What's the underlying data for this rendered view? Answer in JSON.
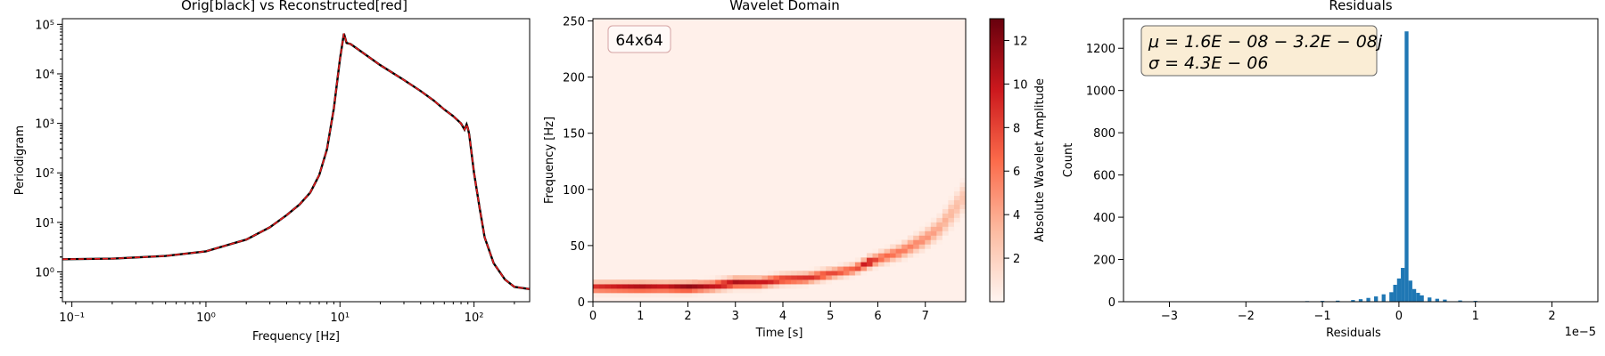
{
  "chart_data": [
    {
      "type": "line",
      "title": "Orig[black] vs Reconstructed[red]",
      "xlabel": "Frequency [Hz]",
      "ylabel": "Periodigram",
      "x_scale": "log",
      "y_scale": "log",
      "xlim": [
        0.085,
        260
      ],
      "ylim": [
        0.25,
        130000
      ],
      "x_ticks": [
        {
          "v": 0.1,
          "label": "10⁻¹"
        },
        {
          "v": 1,
          "label": "10⁰"
        },
        {
          "v": 10,
          "label": "10¹"
        },
        {
          "v": 100,
          "label": "10²"
        }
      ],
      "y_ticks": [
        {
          "v": 1,
          "label": "10⁰"
        },
        {
          "v": 10,
          "label": "10¹"
        },
        {
          "v": 100,
          "label": "10²"
        },
        {
          "v": 1000,
          "label": "10³"
        },
        {
          "v": 10000,
          "label": "10⁴"
        },
        {
          "v": 100000,
          "label": "10⁵"
        }
      ],
      "series": [
        {
          "color": "#000000",
          "style": "solid",
          "points": [
            [
              0.085,
              1.8
            ],
            [
              0.2,
              1.85
            ],
            [
              0.5,
              2.1
            ],
            [
              1,
              2.6
            ],
            [
              2,
              4.5
            ],
            [
              3,
              8
            ],
            [
              4,
              14
            ],
            [
              5,
              23
            ],
            [
              6,
              40
            ],
            [
              7,
              90
            ],
            [
              8,
              300
            ],
            [
              9,
              2000
            ],
            [
              10,
              20000
            ],
            [
              10.7,
              65000
            ],
            [
              11.2,
              42000
            ],
            [
              12,
              40000
            ],
            [
              15,
              26000
            ],
            [
              20,
              15000
            ],
            [
              30,
              7500
            ],
            [
              40,
              4500
            ],
            [
              50,
              2900
            ],
            [
              60,
              1900
            ],
            [
              70,
              1400
            ],
            [
              80,
              1000
            ],
            [
              85,
              750
            ],
            [
              88,
              950
            ],
            [
              90,
              800
            ],
            [
              92,
              600
            ],
            [
              95,
              300
            ],
            [
              100,
              100
            ],
            [
              110,
              20
            ],
            [
              120,
              5
            ],
            [
              140,
              1.5
            ],
            [
              170,
              0.7
            ],
            [
              200,
              0.5
            ],
            [
              260,
              0.45
            ]
          ]
        },
        {
          "color": "#e41a1c",
          "style": "dashed",
          "points": [
            [
              0.085,
              1.8
            ],
            [
              0.2,
              1.85
            ],
            [
              0.5,
              2.1
            ],
            [
              1,
              2.6
            ],
            [
              2,
              4.5
            ],
            [
              3,
              8
            ],
            [
              4,
              14
            ],
            [
              5,
              23
            ],
            [
              6,
              40
            ],
            [
              7,
              90
            ],
            [
              8,
              300
            ],
            [
              9,
              2000
            ],
            [
              10,
              20000
            ],
            [
              10.7,
              65000
            ],
            [
              11.2,
              42000
            ],
            [
              12,
              40000
            ],
            [
              15,
              26000
            ],
            [
              20,
              15000
            ],
            [
              30,
              7500
            ],
            [
              40,
              4500
            ],
            [
              50,
              2900
            ],
            [
              60,
              1900
            ],
            [
              70,
              1400
            ],
            [
              80,
              1000
            ],
            [
              85,
              750
            ],
            [
              88,
              950
            ],
            [
              90,
              800
            ],
            [
              92,
              600
            ],
            [
              95,
              300
            ],
            [
              100,
              100
            ],
            [
              110,
              20
            ],
            [
              120,
              5
            ],
            [
              140,
              1.5
            ],
            [
              170,
              0.7
            ],
            [
              200,
              0.5
            ],
            [
              260,
              0.45
            ]
          ]
        }
      ]
    },
    {
      "type": "heatmap",
      "title": "Wavelet Domain",
      "xlabel": "Time [s]",
      "ylabel": "Frequency [Hz]",
      "xlim": [
        0,
        7.85
      ],
      "ylim": [
        0,
        252
      ],
      "x_ticks": [
        0,
        1,
        2,
        3,
        4,
        5,
        6,
        7
      ],
      "y_ticks": [
        0,
        50,
        100,
        150,
        200,
        250
      ],
      "annotation": "64x64",
      "grid_size": [
        64,
        64
      ],
      "colorbar": {
        "label": "Absolute Wavelet Amplitude",
        "range": [
          0,
          13
        ],
        "ticks": [
          2,
          4,
          6,
          8,
          10,
          12
        ],
        "colormap": "Reds"
      },
      "ridge": [
        [
          0,
          13,
          9
        ],
        [
          0.5,
          13,
          10
        ],
        [
          1,
          13,
          11
        ],
        [
          1.5,
          13,
          10
        ],
        [
          2,
          13,
          12
        ],
        [
          2.5,
          14,
          10
        ],
        [
          3,
          17,
          11
        ],
        [
          3.5,
          17,
          10
        ],
        [
          4,
          20,
          9
        ],
        [
          4.5,
          21,
          9
        ],
        [
          5,
          25,
          8
        ],
        [
          5.5,
          29,
          7
        ],
        [
          5.8,
          35,
          11
        ],
        [
          6,
          38,
          7
        ],
        [
          6.5,
          45,
          6
        ],
        [
          7,
          56,
          5
        ],
        [
          7.3,
          66,
          4
        ],
        [
          7.5,
          76,
          3.5
        ],
        [
          7.7,
          87,
          3
        ],
        [
          7.85,
          96,
          2.5
        ]
      ]
    },
    {
      "type": "bar",
      "title": "Residuals",
      "xlabel": "Residuals",
      "ylabel": "Count",
      "x_offset_label": "1e−5",
      "xlim": [
        -3.6,
        2.6
      ],
      "ylim": [
        0,
        1340
      ],
      "x_ticks": [
        {
          "v": -3,
          "label": "−3"
        },
        {
          "v": -2,
          "label": "−2"
        },
        {
          "v": -1,
          "label": "−1"
        },
        {
          "v": 0,
          "label": "0"
        },
        {
          "v": 1,
          "label": "1"
        },
        {
          "v": 2,
          "label": "2"
        }
      ],
      "y_ticks": [
        0,
        200,
        400,
        600,
        800,
        1000,
        1200
      ],
      "bar_color": "#1f77b4",
      "stats": [
        "μ = 1.6E − 08 − 3.2E − 08j",
        "σ = 4.3E − 06"
      ],
      "bins": [
        [
          -1.2,
          3
        ],
        [
          -1.0,
          4
        ],
        [
          -0.8,
          5
        ],
        [
          -0.6,
          8
        ],
        [
          -0.5,
          12
        ],
        [
          -0.4,
          18
        ],
        [
          -0.3,
          25
        ],
        [
          -0.2,
          35
        ],
        [
          -0.1,
          45
        ],
        [
          -0.05,
          80
        ],
        [
          0.0,
          110
        ],
        [
          0.05,
          160
        ],
        [
          0.1,
          1280
        ],
        [
          0.15,
          100
        ],
        [
          0.2,
          60
        ],
        [
          0.25,
          42
        ],
        [
          0.3,
          30
        ],
        [
          0.4,
          20
        ],
        [
          0.5,
          14
        ],
        [
          0.6,
          10
        ],
        [
          0.8,
          6
        ],
        [
          1.0,
          4
        ],
        [
          1.2,
          2
        ],
        [
          1.4,
          1
        ]
      ]
    }
  ]
}
